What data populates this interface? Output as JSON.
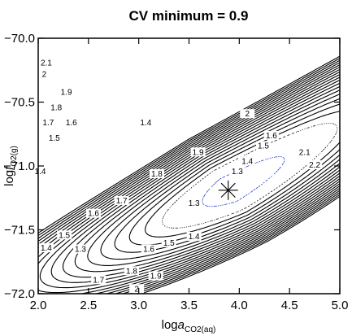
{
  "chart_data": {
    "type": "contour",
    "title": "CV minimum = 0.9",
    "xlabel": {
      "prefix": "log",
      "italic": "a",
      "sub": "CO2(aq)"
    },
    "ylabel": {
      "prefix": "log",
      "italic": "f",
      "sub": "O2(g)"
    },
    "xlim": [
      2.0,
      5.0
    ],
    "ylim": [
      -72.0,
      -70.0
    ],
    "x_ticks": [
      "2.0",
      "2.5",
      "3.0",
      "3.5",
      "4.0",
      "4.5",
      "5.0"
    ],
    "y_ticks": [
      "-70.0",
      "-70.5",
      "-71.0",
      "-71.5",
      "-72.0"
    ],
    "minimum_marker": {
      "x": 3.89,
      "y": -71.19,
      "value": 0.9
    },
    "contour_labels": [
      {
        "text": "2.1",
        "x": 2.08,
        "y": -70.2
      },
      {
        "text": "2",
        "x": 2.06,
        "y": -70.29
      },
      {
        "text": "1.9",
        "x": 2.28,
        "y": -70.43
      },
      {
        "text": "1.8",
        "x": 2.18,
        "y": -70.55
      },
      {
        "text": "1.7",
        "x": 2.1,
        "y": -70.67
      },
      {
        "text": "1.6",
        "x": 2.33,
        "y": -70.67
      },
      {
        "text": "1.5",
        "x": 2.16,
        "y": -70.79
      },
      {
        "text": "1.4",
        "x": 2.02,
        "y": -71.05
      },
      {
        "text": "1.4",
        "x": 3.07,
        "y": -70.67
      },
      {
        "text": "2",
        "x": 4.08,
        "y": -70.6
      },
      {
        "text": "1.9",
        "x": 3.59,
        "y": -70.9
      },
      {
        "text": "1.8",
        "x": 3.18,
        "y": -71.07
      },
      {
        "text": "1.7",
        "x": 2.83,
        "y": -71.28
      },
      {
        "text": "1.6",
        "x": 2.55,
        "y": -71.38
      },
      {
        "text": "1.5",
        "x": 2.26,
        "y": -71.55
      },
      {
        "text": "1.4",
        "x": 2.08,
        "y": -71.65
      },
      {
        "text": "1.3",
        "x": 2.42,
        "y": -71.66
      },
      {
        "text": "1.3",
        "x": 3.55,
        "y": -71.3
      },
      {
        "text": "1.3",
        "x": 3.98,
        "y": -71.05
      },
      {
        "text": "1.4",
        "x": 4.08,
        "y": -70.97
      },
      {
        "text": "1.5",
        "x": 4.24,
        "y": -70.85
      },
      {
        "text": "1.6",
        "x": 4.32,
        "y": -70.77
      },
      {
        "text": "1.4",
        "x": 3.55,
        "y": -71.56
      },
      {
        "text": "1.5",
        "x": 3.3,
        "y": -71.61
      },
      {
        "text": "1.6",
        "x": 3.1,
        "y": -71.66
      },
      {
        "text": "1.7",
        "x": 2.6,
        "y": -71.9
      },
      {
        "text": "1.8",
        "x": 2.93,
        "y": -71.83
      },
      {
        "text": "1.9",
        "x": 3.17,
        "y": -71.87
      },
      {
        "text": "2",
        "x": 2.98,
        "y": -71.97
      },
      {
        "text": "2.1",
        "x": 4.65,
        "y": -70.9
      },
      {
        "text": "2.2",
        "x": 4.75,
        "y": -71.0
      }
    ]
  }
}
